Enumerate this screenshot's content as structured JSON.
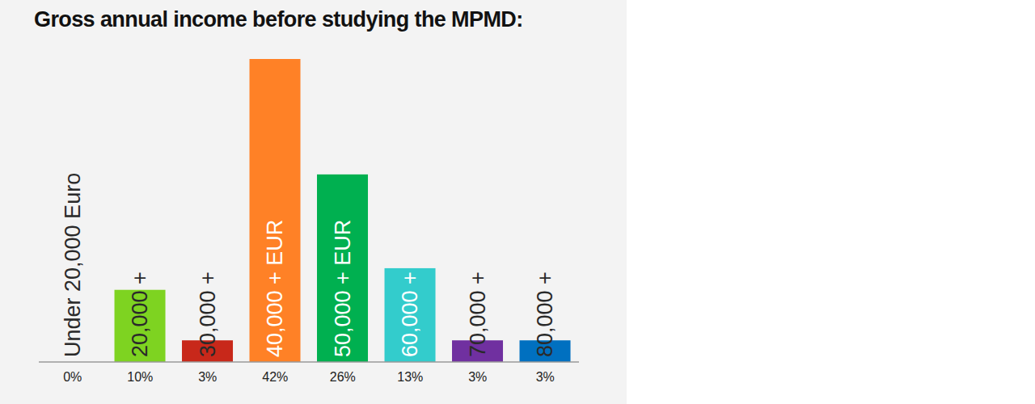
{
  "chart_data": {
    "type": "bar",
    "title": "Gross annual income before studying the MPMD:",
    "categories": [
      "Under 20,000 Euro",
      "20,000 +",
      "30,000 +",
      "40,000 + EUR",
      "50,000 + EUR",
      "60,000 +",
      "70,000 +",
      "80,000 +"
    ],
    "values": [
      0,
      10,
      3,
      42,
      26,
      13,
      3,
      3
    ],
    "value_labels": [
      "0%",
      "10%",
      "3%",
      "42%",
      "26%",
      "13%",
      "3%",
      "3%"
    ],
    "colors": [
      "#9a9a9a",
      "#7ed321",
      "#c8281a",
      "#ff8126",
      "#00b050",
      "#33cccc",
      "#7030a0",
      "#0070c0"
    ],
    "ylim": [
      0,
      42
    ],
    "data_labels": true,
    "tick_labels": false,
    "grid": false
  }
}
